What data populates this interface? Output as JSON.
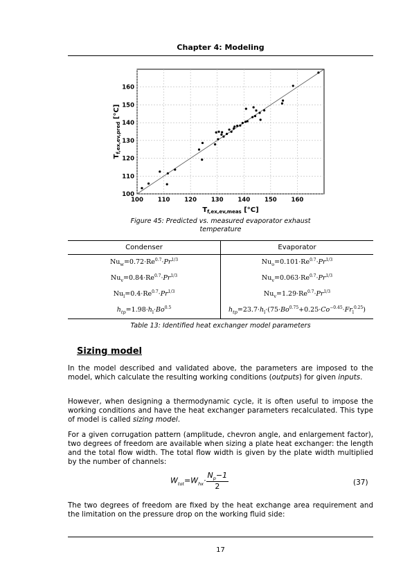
{
  "header": {
    "chapter_title": "Chapter 4: Modeling"
  },
  "figure": {
    "caption_line1": "Figure 45: Predicted vs. measured evaporator exhaust",
    "caption_line2": "temperature"
  },
  "chart_data": {
    "type": "scatter",
    "xlabel": "T",
    "xlabel_sub": "f,ex,ev,meas",
    "xlabel_unit": " [°C]",
    "ylabel": "T",
    "ylabel_sub": "f,ex,ev,pred",
    "ylabel_unit": " [°C]",
    "xlim": [
      100,
      170
    ],
    "ylim": [
      100,
      170
    ],
    "xticks": [
      100,
      110,
      120,
      130,
      140,
      150,
      160
    ],
    "yticks": [
      100,
      110,
      120,
      130,
      140,
      150,
      160
    ],
    "grid": true,
    "reference_line": [
      [
        100,
        100
      ],
      [
        170,
        170
      ]
    ],
    "points": [
      [
        101.8,
        103.2
      ],
      [
        104.3,
        105.8
      ],
      [
        108.5,
        112.5
      ],
      [
        111.2,
        105.4
      ],
      [
        111.5,
        111.5
      ],
      [
        114.2,
        113.6
      ],
      [
        123.2,
        124.9
      ],
      [
        124.3,
        119.2
      ],
      [
        124.5,
        128.6
      ],
      [
        129.2,
        127.8
      ],
      [
        129.6,
        134.5
      ],
      [
        130.3,
        130.7
      ],
      [
        130.6,
        134.9
      ],
      [
        131.6,
        133.3
      ],
      [
        131.8,
        134.6
      ],
      [
        132.4,
        132.2
      ],
      [
        133.6,
        133.7
      ],
      [
        134.5,
        136.1
      ],
      [
        135.3,
        134.9
      ],
      [
        136.2,
        136.7
      ],
      [
        136.5,
        137.8
      ],
      [
        137.5,
        138.2
      ],
      [
        138.6,
        138.4
      ],
      [
        139.5,
        139.8
      ],
      [
        140.6,
        140.5
      ],
      [
        140.8,
        147.8
      ],
      [
        141.3,
        140.8
      ],
      [
        143.2,
        143.1
      ],
      [
        143.6,
        148.6
      ],
      [
        144.2,
        143.7
      ],
      [
        144.6,
        146.8
      ],
      [
        145.9,
        145.5
      ],
      [
        146.2,
        141.6
      ],
      [
        147.6,
        146.9
      ],
      [
        154.3,
        150.8
      ],
      [
        154.6,
        152.4
      ],
      [
        158.4,
        160.7
      ],
      [
        167.9,
        168.1
      ]
    ]
  },
  "table": {
    "headers": [
      "Condenser",
      "Evaporator"
    ],
    "caption": "Table 13: Identified heat exchanger model parameters"
  },
  "section": {
    "title": "Sizing model"
  },
  "paragraphs": {
    "p1a": "In the model described and validated above, the parameters are imposed to the model, which calculate the resulting working conditions (",
    "p1b": "outputs",
    "p1c": ") for given ",
    "p1d": "inputs",
    "p1e": ".",
    "p2a": "However, when designing a thermodynamic cycle, it is often useful to impose the working conditions and have the heat exchanger parameters recalculated. This type of model is called ",
    "p2b": "sizing model",
    "p2c": ".",
    "p3": "For a given corrugation pattern (amplitude, chevron angle, and enlargement factor), two degrees of freedom are available when sizing a plate heat exchanger: the length and the total flow width.  The total flow width is given by the plate width multiplied by the number of channels:",
    "p4": "The two degrees of freedom are fixed by the heat exchange area requirement and the limitation on the pressure drop on the working fluid side:"
  },
  "equation": {
    "number": "(37)"
  },
  "footer": {
    "page_number": "17"
  }
}
